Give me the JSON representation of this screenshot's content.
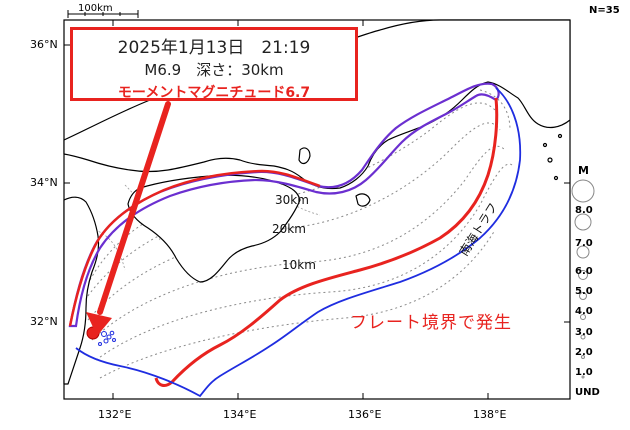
{
  "map": {
    "scale_bar": "100km",
    "event_count": "N=35",
    "latitudes": [
      "36°N",
      "34°N",
      "32°N"
    ],
    "longitudes": [
      "132°E",
      "134°E",
      "136°E",
      "138°E"
    ]
  },
  "event": {
    "date_time": "2025年1月13日　21:19",
    "magnitude_depth": "M6.9　深さ：30km",
    "moment_magnitude": "モーメントマグニチュード6.7"
  },
  "annotations": {
    "depth_30": "30km",
    "depth_20": "20km",
    "depth_10": "10km",
    "trough": "南海トラフ",
    "plate_boundary": "フレート境界で発生"
  },
  "legend": {
    "title": "M",
    "levels": [
      "8.0",
      "7.0",
      "6.0",
      "5.0",
      "4.0",
      "3.0",
      "2.0",
      "1.0",
      "UND"
    ]
  },
  "colors": {
    "highlight": "#e8231f",
    "trough_line": "#1f2de0",
    "rupture_outline": "#6b2fd0",
    "coast": "#000000",
    "contour": "#8a8a8a"
  }
}
